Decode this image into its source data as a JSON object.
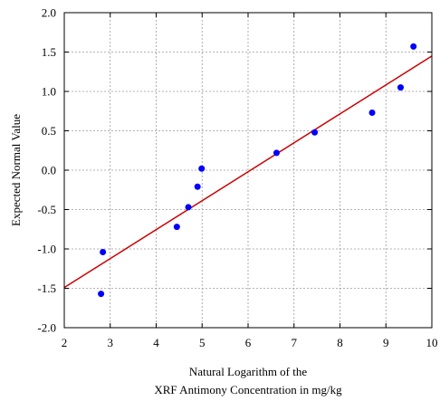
{
  "chart_data": {
    "type": "scatter",
    "xlabel_lines": [
      "Natural Logarithm of the",
      "XRF Antimony Concentration in mg/kg"
    ],
    "ylabel": "Expected Normal Value",
    "xlim": [
      2,
      10
    ],
    "ylim": [
      -2.0,
      2.0
    ],
    "x_ticks": [
      2,
      3,
      4,
      5,
      6,
      7,
      8,
      9,
      10
    ],
    "y_ticks": [
      -2.0,
      -1.5,
      -1.0,
      -0.5,
      0.0,
      0.5,
      1.0,
      1.5,
      2.0
    ],
    "x_tick_labels": [
      "2",
      "3",
      "4",
      "5",
      "6",
      "7",
      "8",
      "9",
      "10"
    ],
    "y_tick_labels": [
      "-2.0",
      "-1.5",
      "-1.0",
      "-0.5",
      "0.0",
      "0.5",
      "1.0",
      "1.5",
      "2.0"
    ],
    "grid": true,
    "series": [
      {
        "type": "scatter",
        "color": "#0000ff",
        "points": [
          {
            "x": 2.8,
            "y": -1.57
          },
          {
            "x": 2.84,
            "y": -1.04
          },
          {
            "x": 4.45,
            "y": -0.72
          },
          {
            "x": 4.7,
            "y": -0.47
          },
          {
            "x": 4.9,
            "y": -0.21
          },
          {
            "x": 4.99,
            "y": 0.02
          },
          {
            "x": 6.62,
            "y": 0.22
          },
          {
            "x": 7.45,
            "y": 0.48
          },
          {
            "x": 8.7,
            "y": 0.73
          },
          {
            "x": 9.32,
            "y": 1.05
          },
          {
            "x": 9.6,
            "y": 1.57
          }
        ]
      },
      {
        "type": "line",
        "color": "#cc0000",
        "points": [
          {
            "x": 2.0,
            "y": -1.49
          },
          {
            "x": 10.0,
            "y": 1.45
          }
        ]
      }
    ]
  }
}
